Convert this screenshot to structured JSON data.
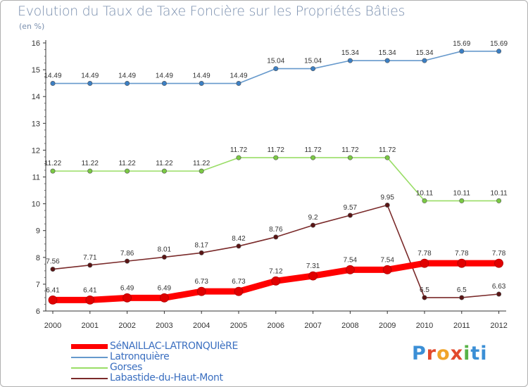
{
  "header": {
    "title": "Evolution du Taux de Taxe Foncière sur les Propriétés Bâties",
    "subtitle": "(en %)"
  },
  "logo": {
    "text": "Proxiti",
    "letters": [
      "P",
      "r",
      "o",
      "x",
      "i",
      "ti"
    ]
  },
  "chart_data": {
    "type": "line",
    "title": "Evolution du Taux de Taxe Foncière sur les Propriétés Bâties",
    "ylabel": "(en %)",
    "xlabel": "",
    "x": [
      "2000",
      "2001",
      "2002",
      "2003",
      "2004",
      "2005",
      "2006",
      "2007",
      "2008",
      "2009",
      "2010",
      "2011",
      "2012"
    ],
    "ylim": [
      6,
      16
    ],
    "yticks": [
      6,
      7,
      8,
      9,
      10,
      11,
      12,
      13,
      14,
      15,
      16
    ],
    "grid": false,
    "legend_position": "bottom-left",
    "series": [
      {
        "name": "SéNAILLAC-LATRONQUIèRE",
        "color": "#ff0000",
        "marker_color": "#d40000",
        "thick": true,
        "values": [
          6.41,
          6.41,
          6.49,
          6.49,
          6.73,
          6.73,
          7.12,
          7.31,
          7.54,
          7.54,
          7.78,
          7.78,
          7.78
        ],
        "labels": [
          "6.41",
          "6.41",
          "6.49",
          "6.49",
          "6.73",
          "6.73",
          "7.12",
          "7.31",
          "7.54",
          "7.54",
          "7.78",
          "7.78",
          "7.78"
        ]
      },
      {
        "name": "Latronquière",
        "color": "#6699cc",
        "marker_color": "#3b7fc4",
        "thick": false,
        "values": [
          14.49,
          14.49,
          14.49,
          14.49,
          14.49,
          14.49,
          15.04,
          15.04,
          15.34,
          15.34,
          15.34,
          15.69,
          15.69
        ],
        "labels": [
          "14.49",
          "14.49",
          "14.49",
          "14.49",
          "14.49",
          "14.49",
          "15.04",
          "15.04",
          "15.34",
          "15.34",
          "15.34",
          "15.69",
          "15.69"
        ]
      },
      {
        "name": "Gorses",
        "color": "#99dd66",
        "marker_color": "#7ac943",
        "thick": false,
        "values": [
          11.22,
          11.22,
          11.22,
          11.22,
          11.22,
          11.72,
          11.72,
          11.72,
          11.72,
          11.72,
          10.11,
          10.11,
          10.11
        ],
        "labels": [
          "11.22",
          "11.22",
          "11.22",
          "11.22",
          "11.22",
          "11.72",
          "11.72",
          "11.72",
          "11.72",
          "11.72",
          "10.11",
          "10.11",
          "10.11"
        ]
      },
      {
        "name": "Labastide-du-Haut-Mont",
        "color": "#7a2a2a",
        "marker_color": "#5a1515",
        "thick": false,
        "values": [
          7.56,
          7.71,
          7.86,
          8.01,
          8.17,
          8.42,
          8.76,
          9.2,
          9.57,
          9.95,
          6.5,
          6.5,
          6.63
        ],
        "labels": [
          "7.56",
          "7.71",
          "7.86",
          "8.01",
          "8.17",
          "8.42",
          "8.76",
          "9.2",
          "9.57",
          "9.95",
          "6.5",
          "6.5",
          "6.63"
        ]
      }
    ]
  }
}
